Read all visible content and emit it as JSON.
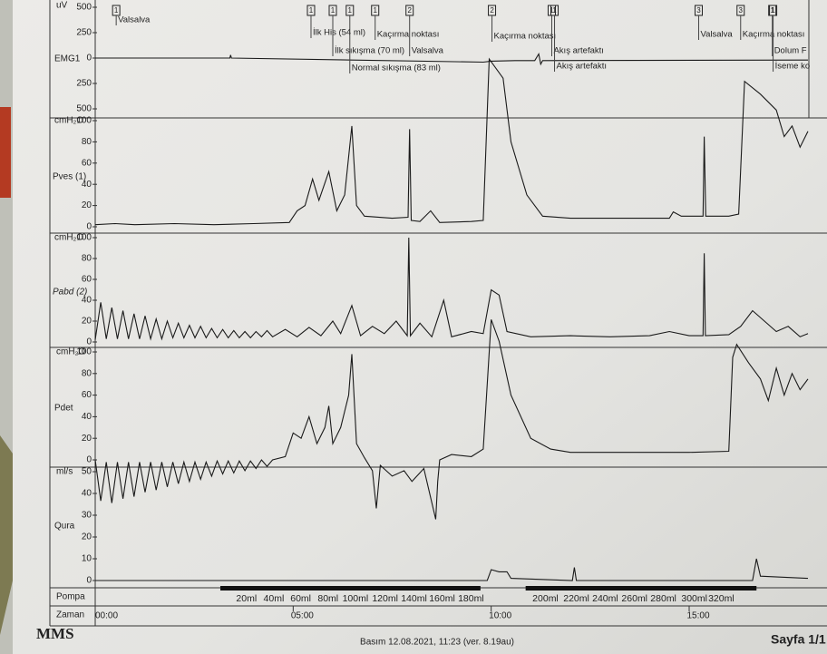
{
  "chart_data": [
    {
      "type": "line",
      "y_label": "EMG1",
      "unit": "uV",
      "color": "#222222",
      "xlim": [
        0,
        18
      ],
      "ylim": [
        -500,
        500
      ],
      "yticks": [
        500,
        250,
        0,
        {
          "value": -250,
          "label": "250"
        },
        {
          "value": -500,
          "label": "500"
        }
      ],
      "x": [
        0,
        3.4,
        3.42,
        3.44,
        9.8,
        10,
        10.6,
        11.1,
        11.2,
        11.25,
        11.3,
        18
      ],
      "values": [
        0,
        0,
        30,
        0,
        -40,
        -30,
        -25,
        -25,
        40,
        -60,
        -25,
        -20
      ],
      "annotations": [
        {
          "x": 0.53,
          "marker": 1,
          "text": "Valsalva"
        },
        {
          "x": 5.45,
          "marker": 1,
          "text": "İlk His (54 ml)"
        },
        {
          "x": 6.0,
          "marker": 1,
          "text": "İlk sıkışma (70 ml)"
        },
        {
          "x": 6.43,
          "marker": 1,
          "text": "Normal sıkışma (83 ml)"
        },
        {
          "x": 7.07,
          "marker": 1,
          "text": "Kaçırma noktası"
        },
        {
          "x": 7.94,
          "marker": 2,
          "text": "Valsalva"
        },
        {
          "x": 10.02,
          "marker": 2,
          "text": "Kaçırma noktası"
        },
        {
          "x": 11.53,
          "marker": 1,
          "text": "Akış artefaktı"
        },
        {
          "x": 11.6,
          "marker": 1,
          "text": "Akış artefaktı"
        },
        {
          "x": 15.24,
          "marker": 3,
          "text": "Valsalva"
        },
        {
          "x": 16.3,
          "marker": 3,
          "text": "Kaçırma noktası"
        },
        {
          "x": 17.1,
          "marker": 1,
          "text": "Dolum F"
        },
        {
          "x": 17.12,
          "marker": 1,
          "text": "İseme ko"
        }
      ]
    },
    {
      "type": "line",
      "y_label": "Pves (1)",
      "unit": "cmH₂O",
      "color": "#222222",
      "xlim": [
        0,
        18
      ],
      "ylim": [
        0,
        100
      ],
      "yticks": [
        0,
        20,
        40,
        60,
        80,
        100
      ],
      "x": [
        0,
        0.5,
        1,
        2,
        3,
        4,
        4.9,
        5.1,
        5.3,
        5.49,
        5.65,
        5.9,
        6.1,
        6.3,
        6.48,
        6.6,
        6.8,
        7.5,
        7.9,
        7.94,
        7.98,
        8.2,
        8.47,
        8.7,
        9.5,
        9.8,
        9.95,
        10.3,
        10.5,
        10.9,
        11.3,
        12,
        13,
        14.5,
        14.6,
        14.8,
        15.35,
        15.38,
        15.42,
        16,
        16.25,
        16.4,
        16.8,
        17.2,
        17.4,
        17.6,
        17.8,
        18
      ],
      "values": [
        2,
        3,
        2,
        3,
        2,
        3,
        4,
        15,
        20,
        45,
        25,
        52,
        15,
        30,
        95,
        20,
        10,
        8,
        9,
        92,
        6,
        5,
        15,
        4,
        5,
        6,
        158,
        140,
        80,
        30,
        10,
        8,
        8,
        8,
        14,
        10,
        10,
        85,
        10,
        10,
        12,
        137,
        125,
        110,
        85,
        95,
        75,
        90
      ]
    },
    {
      "type": "line",
      "y_label": "Pabd (2)",
      "unit": "cmH₂O",
      "color": "#222222",
      "xlim": [
        0,
        18
      ],
      "ylim": [
        0,
        100
      ],
      "yticks": [
        0,
        20,
        40,
        60,
        80,
        100
      ],
      "x": [
        0,
        0.14,
        0.28,
        0.42,
        0.56,
        0.7,
        0.84,
        0.98,
        1.12,
        1.26,
        1.4,
        1.54,
        1.68,
        1.82,
        1.96,
        2.1,
        2.24,
        2.38,
        2.52,
        2.66,
        2.8,
        2.94,
        3.08,
        3.22,
        3.36,
        3.5,
        3.64,
        3.78,
        3.92,
        4.06,
        4.2,
        4.34,
        4.48,
        4.8,
        5.1,
        5.4,
        5.7,
        6.0,
        6.2,
        6.48,
        6.7,
        7.0,
        7.3,
        7.6,
        7.88,
        7.92,
        7.96,
        8.2,
        8.5,
        8.8,
        9.0,
        9.5,
        9.8,
        10.0,
        10.2,
        10.4,
        11,
        12,
        13,
        14,
        14.5,
        15,
        15.35,
        15.38,
        15.41,
        16,
        16.3,
        16.6,
        16.9,
        17.2,
        17.5,
        17.8,
        18
      ],
      "values": [
        2,
        38,
        3,
        33,
        3,
        30,
        3,
        27,
        3,
        25,
        3,
        22,
        3,
        20,
        4,
        18,
        4,
        16,
        4,
        15,
        4,
        13,
        4,
        12,
        4,
        11,
        4,
        10,
        4,
        10,
        5,
        11,
        5,
        12,
        5,
        14,
        6,
        20,
        8,
        35,
        6,
        15,
        8,
        20,
        6,
        100,
        6,
        18,
        5,
        40,
        5,
        10,
        8,
        50,
        45,
        10,
        5,
        6,
        5,
        6,
        10,
        6,
        6,
        85,
        6,
        7,
        15,
        30,
        20,
        10,
        15,
        5,
        8
      ]
    },
    {
      "type": "line",
      "y_label": "Pdet",
      "unit": "cmH₂O",
      "color": "#222222",
      "xlim": [
        0,
        18
      ],
      "ylim": [
        0,
        100
      ],
      "yticks": [
        0,
        20,
        40,
        60,
        80,
        100
      ],
      "x": [
        0,
        0.14,
        0.28,
        0.42,
        0.56,
        0.7,
        0.84,
        0.98,
        1.12,
        1.26,
        1.4,
        1.54,
        1.68,
        1.82,
        1.96,
        2.1,
        2.24,
        2.38,
        2.52,
        2.66,
        2.8,
        2.94,
        3.08,
        3.22,
        3.36,
        3.5,
        3.64,
        3.78,
        3.92,
        4.06,
        4.2,
        4.34,
        4.48,
        4.8,
        5.0,
        5.2,
        5.4,
        5.6,
        5.8,
        5.9,
        6.0,
        6.2,
        6.4,
        6.48,
        6.6,
        6.8,
        7.0,
        7.1,
        7.2,
        7.5,
        7.8,
        8.0,
        8.3,
        8.6,
        8.65,
        8.7,
        9.0,
        9.5,
        9.8,
        10.0,
        10.2,
        10.5,
        11,
        11.5,
        12,
        13,
        14,
        15,
        16,
        16.1,
        16.2,
        16.5,
        16.8,
        17.0,
        17.2,
        17.4,
        17.6,
        17.8,
        18
      ],
      "values": [
        0,
        -38,
        -2,
        -40,
        -2,
        -36,
        -2,
        -34,
        -2,
        -30,
        -2,
        -28,
        -2,
        -25,
        -2,
        -22,
        -2,
        -20,
        -2,
        -18,
        -2,
        -15,
        -1,
        -13,
        -1,
        -12,
        -1,
        -10,
        -1,
        -8,
        0,
        -6,
        0,
        3,
        25,
        20,
        40,
        15,
        30,
        50,
        15,
        30,
        60,
        98,
        15,
        2,
        -10,
        -45,
        -5,
        -15,
        -10,
        -20,
        -8,
        -55,
        -20,
        0,
        5,
        3,
        10,
        130,
        110,
        60,
        20,
        10,
        7,
        7,
        7,
        7,
        8,
        95,
        107,
        90,
        75,
        55,
        85,
        60,
        80,
        65,
        75
      ]
    },
    {
      "type": "line",
      "y_label": "Qura",
      "unit": "ml/s",
      "color": "#222222",
      "xlim": [
        0,
        18
      ],
      "ylim": [
        0,
        50
      ],
      "yticks": [
        0,
        10,
        20,
        30,
        40,
        50
      ],
      "x": [
        0,
        5,
        9.9,
        10.0,
        10.2,
        10.4,
        10.5,
        12.05,
        12.1,
        12.15,
        16.6,
        16.7,
        16.8,
        18
      ],
      "values": [
        0,
        0,
        0,
        5,
        4,
        4,
        1,
        0,
        6,
        0,
        0,
        10,
        2,
        1
      ]
    }
  ],
  "pump": {
    "label": "Pompa",
    "segments": [
      [
        3.16,
        9.73
      ],
      [
        10.87,
        16.7
      ]
    ],
    "volume_marks": [
      {
        "x": 3.82,
        "label": "20ml"
      },
      {
        "x": 4.51,
        "label": "40ml"
      },
      {
        "x": 5.19,
        "label": "60ml"
      },
      {
        "x": 5.88,
        "label": "80ml"
      },
      {
        "x": 6.57,
        "label": "100ml"
      },
      {
        "x": 7.32,
        "label": "120ml"
      },
      {
        "x": 8.05,
        "label": "140ml"
      },
      {
        "x": 8.76,
        "label": "160ml"
      },
      {
        "x": 9.49,
        "label": "180ml"
      },
      {
        "x": 11.37,
        "label": "200ml"
      },
      {
        "x": 12.15,
        "label": "220ml"
      },
      {
        "x": 12.88,
        "label": "240ml"
      },
      {
        "x": 13.62,
        "label": "260ml"
      },
      {
        "x": 14.35,
        "label": "280ml"
      },
      {
        "x": 15.13,
        "label": "300ml"
      },
      {
        "x": 15.81,
        "label": "320ml"
      }
    ]
  },
  "time_axis": {
    "label": "Zaman",
    "xlim": [
      0,
      18
    ],
    "xticks": [
      {
        "value": 0,
        "label": "00:00"
      },
      {
        "value": 5,
        "label": "05:00"
      },
      {
        "value": 10,
        "label": "10:00"
      },
      {
        "value": 15,
        "label": "15:00"
      }
    ]
  },
  "footer": {
    "logo": "MMS",
    "printed": "Basım 12.08.2021, 11:23 (ver. 8.19au)",
    "page": "Sayfa 1/1"
  }
}
